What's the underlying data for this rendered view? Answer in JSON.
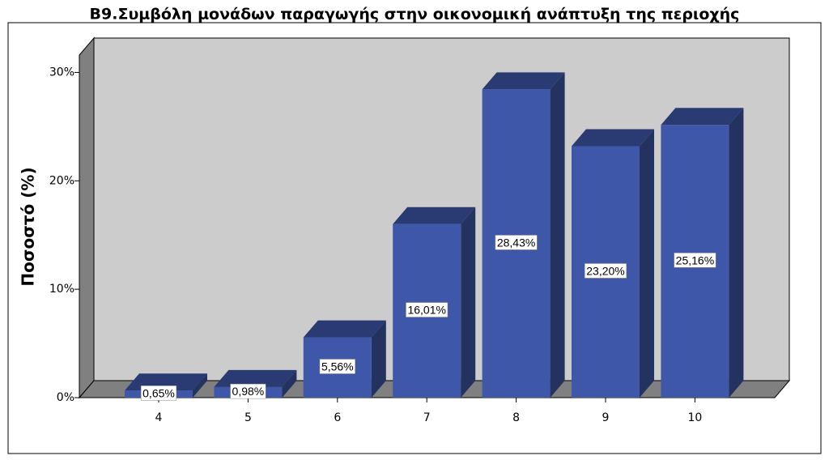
{
  "chart_data": {
    "type": "bar3d",
    "title": "B9.Συμβόλη μονάδων παραγωγής στην οικονομική ανάπτυξη της περιοχής",
    "y_label": "Ποσοστό (%)",
    "categories": [
      "4",
      "5",
      "6",
      "7",
      "8",
      "9",
      "10"
    ],
    "values": [
      0.65,
      0.98,
      5.56,
      16.01,
      28.43,
      23.2,
      25.16
    ],
    "value_labels": [
      "0,65%",
      "0,98%",
      "5,56%",
      "16,01%",
      "28,43%",
      "23,20%",
      "25,16%"
    ],
    "color": "#3f57a8",
    "ylim": [
      0,
      31.6
    ],
    "yticks": [
      {
        "value": 0,
        "label": "0%"
      },
      {
        "value": 10,
        "label": "10%"
      },
      {
        "value": 20,
        "label": "20%"
      },
      {
        "value": 30,
        "label": "30%"
      }
    ],
    "grid": false
  }
}
